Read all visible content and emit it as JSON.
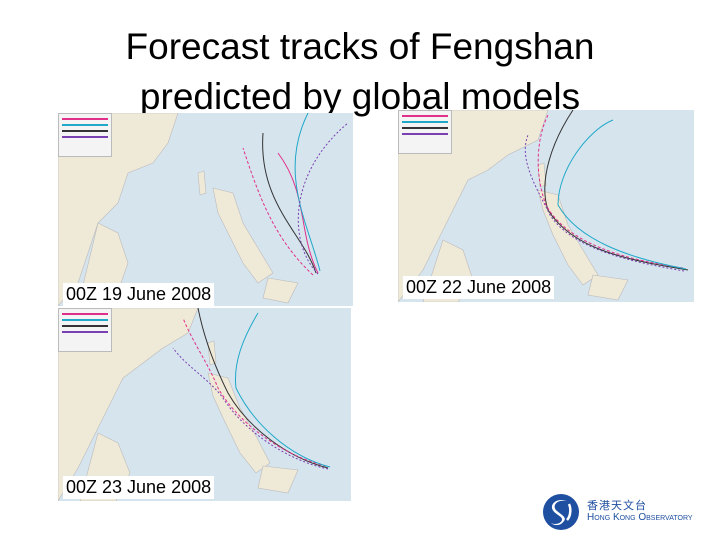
{
  "title_line1": "Forecast tracks of Fengshan",
  "title_line2": "predicted by global models",
  "panels": [
    {
      "caption": "00Z 19 June 2008"
    },
    {
      "caption": "00Z 22 June 2008"
    },
    {
      "caption": "00Z 23 June 2008"
    }
  ],
  "logo": {
    "name_cn": "香港天文台",
    "name_en": "Hong Kong Observatory"
  },
  "colors": {
    "sea": "#d6e4ee",
    "land": "#efe9d8",
    "track_a": "#e0308a",
    "track_b": "#20a8c8",
    "track_c": "#333333",
    "track_d": "#7a3fb0",
    "logo_blue": "#1f4fa0"
  }
}
